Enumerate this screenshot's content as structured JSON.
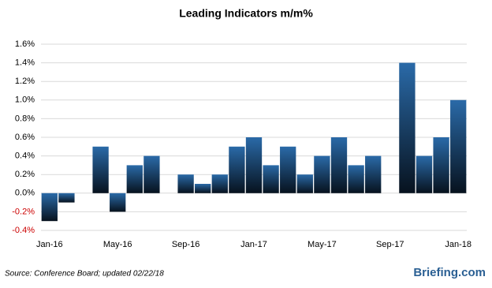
{
  "chart_data": {
    "type": "bar",
    "title": "Leading Indicators m/m%",
    "categories": [
      "Jan-16",
      null,
      null,
      null,
      "May-16",
      null,
      null,
      null,
      "Sep-16",
      null,
      null,
      null,
      "Jan-17",
      null,
      null,
      null,
      "May-17",
      null,
      null,
      null,
      "Sep-17",
      null,
      null,
      null,
      "Jan-18"
    ],
    "values": [
      -0.3,
      -0.1,
      null,
      0.5,
      -0.2,
      0.3,
      0.4,
      null,
      0.2,
      0.1,
      0.2,
      0.5,
      0.6,
      0.3,
      0.5,
      0.2,
      0.4,
      0.6,
      0.3,
      0.4,
      null,
      1.4,
      0.4,
      0.6,
      1.0
    ],
    "color": "#2a6aa8",
    "ylim": [
      -0.4,
      1.6
    ],
    "yticks": [
      {
        "value": -0.4,
        "label": "-0.4%"
      },
      {
        "value": -0.2,
        "label": "-0.2%"
      },
      {
        "value": 0,
        "label": "0.0%"
      },
      {
        "value": 0.2,
        "label": "0.2%"
      },
      {
        "value": 0.4,
        "label": "0.4%"
      },
      {
        "value": 0.6,
        "label": "0.6%"
      },
      {
        "value": 0.8,
        "label": "0.8%"
      },
      {
        "value": 1.0,
        "label": "1.0%"
      },
      {
        "value": 1.2,
        "label": "1.2%"
      },
      {
        "value": 1.4,
        "label": "1.4%"
      },
      {
        "value": 1.6,
        "label": "1.6%"
      }
    ],
    "negative_tick_color": "#cc0000",
    "grid": true,
    "source": "Source: Conference Board; updated 02/22/18",
    "brand": "Briefing.com"
  }
}
